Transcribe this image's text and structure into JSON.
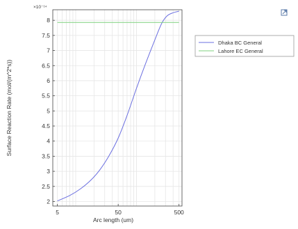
{
  "chart_data": {
    "type": "line",
    "xlabel": "Arc length (um)",
    "ylabel": "Surface Reaction Rate (mol/(m^2*s))",
    "y_exponent": "×10⁻¹⁴",
    "x_scale": "log",
    "xlim": [
      4.2,
      560
    ],
    "ylim": [
      1.85,
      8.35
    ],
    "x_ticks": [
      5,
      50,
      500
    ],
    "x_tick_labels": [
      "5",
      "50",
      "500"
    ],
    "y_ticks": [
      2,
      2.5,
      3,
      3.5,
      4,
      4.5,
      5,
      5.5,
      6,
      6.5,
      7,
      7.5,
      8
    ],
    "y_tick_labels": [
      "2",
      "2.5",
      "3",
      "3.5",
      "4",
      "4.5",
      "5",
      "5.5",
      "6",
      "6.5",
      "7",
      "7.5",
      "8"
    ],
    "grid": true,
    "legend_position": "right-outside",
    "series": [
      {
        "name": "Dhaka BC General",
        "color": "#6b6fe0",
        "x": [
          5,
          8,
          12,
          18,
          25,
          35,
          50,
          70,
          100,
          140,
          200,
          260,
          320,
          400,
          500
        ],
        "y": [
          2.02,
          2.2,
          2.42,
          2.72,
          3.05,
          3.5,
          4.1,
          4.85,
          5.75,
          6.55,
          7.35,
          7.9,
          8.15,
          8.25,
          8.3
        ]
      },
      {
        "name": "Lahore EC General",
        "color": "#7fd07f",
        "x": [
          5,
          500
        ],
        "y": [
          7.93,
          7.93
        ]
      }
    ]
  },
  "toolbar": {
    "icon": "export-icon"
  }
}
